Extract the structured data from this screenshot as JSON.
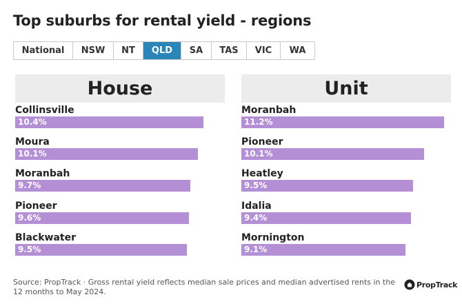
{
  "title": "Top suburbs for rental yield - regions",
  "tabs": [
    {
      "label": "National",
      "active": false
    },
    {
      "label": "NSW",
      "active": false
    },
    {
      "label": "NT",
      "active": false
    },
    {
      "label": "QLD",
      "active": true
    },
    {
      "label": "SA",
      "active": false
    },
    {
      "label": "TAS",
      "active": false
    },
    {
      "label": "VIC",
      "active": false
    },
    {
      "label": "WA",
      "active": false
    }
  ],
  "colors": {
    "bar": "#b48fd6",
    "active_tab": "#2a86b8",
    "panel_header": "#ececec"
  },
  "chart_data": [
    {
      "type": "bar",
      "orientation": "horizontal",
      "title": "House",
      "categories": [
        "Collinsville",
        "Moura",
        "Moranbah",
        "Pioneer",
        "Blackwater"
      ],
      "values": [
        10.4,
        10.1,
        9.7,
        9.6,
        9.5
      ],
      "labels": [
        "10.4%",
        "10.1%",
        "9.7%",
        "9.6%",
        "9.5%"
      ],
      "xlim": [
        0,
        11.6
      ]
    },
    {
      "type": "bar",
      "orientation": "horizontal",
      "title": "Unit",
      "categories": [
        "Moranbah",
        "Pioneer",
        "Heatley",
        "Idalia",
        "Mornington"
      ],
      "values": [
        11.2,
        10.1,
        9.5,
        9.4,
        9.1
      ],
      "labels": [
        "11.2%",
        "10.1%",
        "9.5%",
        "9.4%",
        "9.1%"
      ],
      "xlim": [
        0,
        11.6
      ]
    }
  ],
  "footer": {
    "source": "Source: PropTrack · Gross rental yield reflects median sale prices and median advertised rents in the 12 months to May 2024.",
    "logo_text": "PropTrack",
    "logo_icon": "proptrack-house-icon"
  }
}
